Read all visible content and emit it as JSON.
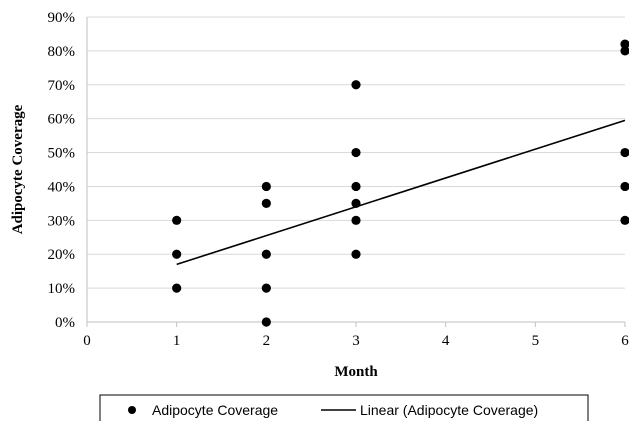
{
  "chart_data": {
    "type": "scatter",
    "title": "",
    "xlabel": "Month",
    "ylabel": "Adipocyte Coverage",
    "xlim": [
      0,
      6
    ],
    "ylim": [
      0,
      0.9
    ],
    "x_ticks": [
      "0",
      "1",
      "2",
      "3",
      "4",
      "5",
      "6"
    ],
    "y_ticks": [
      "0%",
      "10%",
      "20%",
      "30%",
      "40%",
      "50%",
      "60%",
      "70%",
      "80%",
      "90%"
    ],
    "grid": "horizontal",
    "legend_position": "bottom",
    "series": [
      {
        "name": "Adipocyte Coverage",
        "kind": "points",
        "color": "#000000",
        "points": [
          {
            "x": 1,
            "y": 0.3
          },
          {
            "x": 1,
            "y": 0.2
          },
          {
            "x": 1,
            "y": 0.1
          },
          {
            "x": 2,
            "y": 0.4
          },
          {
            "x": 2,
            "y": 0.35
          },
          {
            "x": 2,
            "y": 0.2
          },
          {
            "x": 2,
            "y": 0.1
          },
          {
            "x": 2,
            "y": 0.0
          },
          {
            "x": 3,
            "y": 0.7
          },
          {
            "x": 3,
            "y": 0.5
          },
          {
            "x": 3,
            "y": 0.4
          },
          {
            "x": 3,
            "y": 0.35
          },
          {
            "x": 3,
            "y": 0.3
          },
          {
            "x": 3,
            "y": 0.2
          },
          {
            "x": 6,
            "y": 0.82
          },
          {
            "x": 6,
            "y": 0.8
          },
          {
            "x": 6,
            "y": 0.5
          },
          {
            "x": 6,
            "y": 0.4
          },
          {
            "x": 6,
            "y": 0.3
          }
        ]
      },
      {
        "name": "Linear (Adipocyte Coverage)",
        "kind": "trendline",
        "color": "#000000",
        "line": [
          {
            "x": 1,
            "y": 0.17
          },
          {
            "x": 6,
            "y": 0.595
          }
        ]
      }
    ]
  }
}
